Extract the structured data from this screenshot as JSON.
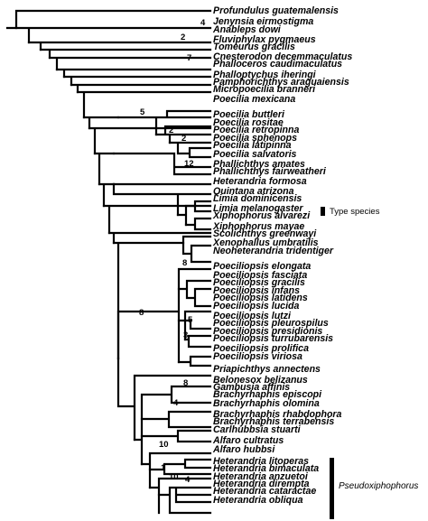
{
  "figure": {
    "taxa": [
      "Profundulus guatemalensis",
      "Jenynsia eirmostigma",
      "Anableps dowi",
      "Fluviphylax pygmaeus",
      "Tomeurus gracilis",
      "Cnesterodon decemmaculatus",
      "Phalloceros caudimaculatus",
      "Phalloptychus iheringi",
      "Pamphorichthys araguaiensis",
      "Micropoecilia branneri",
      "Poecilia mexicana",
      "Poecilia buttleri",
      "Poecilia rositae",
      "Poecilia retropinna",
      "Poecilia sphenops",
      "Poecilia latipinna",
      "Poecilia salvatoris",
      "Phallichthys amates",
      "Phallichthys fairweatheri",
      "Heterandria formosa",
      "Quintana atrizona",
      "Limia dominicensis",
      "Limia melanogaster",
      "Xiphophorus alvarezi",
      "Xiphophorus mayae",
      "Scolichthys greenwayi",
      "Xenophallus umbratilis",
      "Neoheterandria tridentiger",
      "Poeciliopsis elongata",
      "Poeciliopsis fasciata",
      "Poeciliopsis gracilis",
      "Poeciliopsis infans",
      "Poeciliopsis latidens",
      "Poeciliopsis lucida",
      "Poeciliopsis lutzi",
      "Poeciliopsis pleurospilus",
      "Poeciliopsis presidionis",
      "Poeciliopsis turrubarensis",
      "Poeciliopsis prolifica",
      "Poeciliopsis viriosa",
      "Priapichthys annectens",
      "Belonesox belizanus",
      "Gambusia affinis",
      "Brachyrhaphis episcopi",
      "Brachyrhaphis olomina",
      "Brachyrhaphis rhabdophora",
      "Brachyrhaphis terrabensis",
      "Carlhubbsia stuarti",
      "Alfaro cultratus",
      "Alfaro hubbsi",
      "Heterandria litoperas",
      "Heterandria bimaculata",
      "Heterandria anzuetoi",
      "Heterandria dirempta",
      "Heterandria cataractae",
      "Heterandria obliqua"
    ],
    "support_values": [
      "4",
      "2",
      "7",
      "5",
      "2",
      "2",
      "12",
      "8",
      "8",
      "5",
      "3",
      "8",
      "4",
      "10",
      "1",
      "10",
      "4"
    ],
    "type_species_label": "Type species",
    "group_label": "Pseudoxiphophorus"
  }
}
